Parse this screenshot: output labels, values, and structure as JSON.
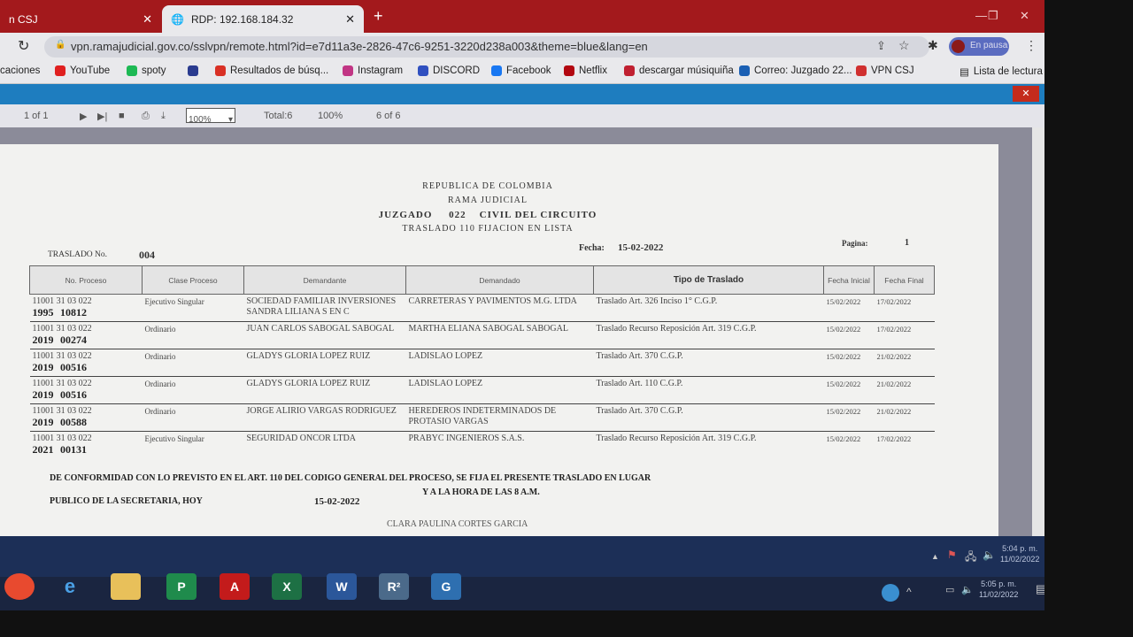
{
  "browser": {
    "tabs": [
      {
        "label": "n CSJ"
      },
      {
        "label": "RDP: 192.168.184.32"
      }
    ],
    "url": "vpn.ramajudicial.gov.co/sslvpn/remote.html?id=e7d11a3e-2826-47c6-9251-3220d238a003&theme=blue&lang=en",
    "profile_label": "En pausa",
    "bookmarks": [
      {
        "label": "caciones",
        "color": ""
      },
      {
        "label": "YouTube",
        "color": "#e02020"
      },
      {
        "label": "spoty",
        "color": "#1db954"
      },
      {
        "label": "",
        "color": "#2a3b8f"
      },
      {
        "label": "Resultados de búsq...",
        "color": "#d93025"
      },
      {
        "label": "Instagram",
        "color": "#c13584"
      },
      {
        "label": "DISCORD",
        "color": "#3050c0"
      },
      {
        "label": "Facebook",
        "color": "#1877f2"
      },
      {
        "label": "Netflix",
        "color": "#b20710"
      },
      {
        "label": "descargar músiquiña",
        "color": "#c02030"
      },
      {
        "label": "Correo: Juzgado 22...",
        "color": "#1a5fb4"
      },
      {
        "label": "VPN CSJ",
        "color": "#d03030"
      }
    ],
    "reading_list": "Lista de lectura"
  },
  "viewer_toolbar": {
    "page": "1 of 1",
    "zoom": "100%",
    "total": "Total:6",
    "percent": "100%",
    "count": "6 of 6"
  },
  "document": {
    "line1": "REPUBLICA DE COLOMBIA",
    "line2": "RAMA JUDICIAL",
    "juzgado_label": "JUZGADO",
    "juzgado_num": "022",
    "juzgado_name": "CIVIL DEL CIRCUITO",
    "line4": "TRASLADO 110 FIJACION EN LISTA",
    "traslado_label": "TRASLADO No.",
    "traslado_num": "004",
    "fecha_label": "Fecha:",
    "fecha": "15-02-2022",
    "pagina_label": "Pagina:",
    "pagina": "1",
    "columns": [
      "No. Proceso",
      "Clase Proceso",
      "Demandante",
      "Demandado",
      "Tipo de Traslado",
      "Fecha Inicial",
      "Fecha Final"
    ],
    "rows": [
      {
        "code": "11001 31 03 022",
        "year": "1995",
        "num": "10812",
        "clase": "Ejecutivo Singular",
        "demandante": "SOCIEDAD FAMILIAR INVERSIONES SANDRA LILIANA S EN C",
        "demandado": "CARRETERAS Y PAVIMENTOS M.G. LTDA",
        "tipo": "Traslado Art. 326 Inciso 1° C.G.P.",
        "inicial": "15/02/2022",
        "final": "17/02/2022"
      },
      {
        "code": "11001 31 03 022",
        "year": "2019",
        "num": "00274",
        "clase": "Ordinario",
        "demandante": "JUAN CARLOS SABOGAL SABOGAL",
        "demandado": "MARTHA ELIANA SABOGAL SABOGAL",
        "tipo": "Traslado Recurso Reposición Art. 319 C.G.P.",
        "inicial": "15/02/2022",
        "final": "17/02/2022"
      },
      {
        "code": "11001 31 03 022",
        "year": "2019",
        "num": "00516",
        "clase": "Ordinario",
        "demandante": "GLADYS GLORIA LOPEZ RUIZ",
        "demandado": "LADISLAO LOPEZ",
        "tipo": "Traslado Art. 370 C.G.P.",
        "inicial": "15/02/2022",
        "final": "21/02/2022"
      },
      {
        "code": "11001 31 03 022",
        "year": "2019",
        "num": "00516",
        "clase": "Ordinario",
        "demandante": "GLADYS GLORIA LOPEZ RUIZ",
        "demandado": "LADISLAO LOPEZ",
        "tipo": "Traslado Art. 110 C.G.P.",
        "inicial": "15/02/2022",
        "final": "21/02/2022"
      },
      {
        "code": "11001 31 03 022",
        "year": "2019",
        "num": "00588",
        "clase": "Ordinario",
        "demandante": "JORGE ALIRIO VARGAS RODRIGUEZ",
        "demandado": "HEREDEROS INDETERMINADOS DE PROTASIO VARGAS",
        "tipo": "Traslado Art. 370 C.G.P.",
        "inicial": "15/02/2022",
        "final": "21/02/2022"
      },
      {
        "code": "11001 31 03 022",
        "year": "2021",
        "num": "00131",
        "clase": "Ejecutivo Singular",
        "demandante": "SEGURIDAD ONCOR LTDA",
        "demandado": "PRABYC INGENIEROS S.A.S.",
        "tipo": "Traslado Recurso Reposición Art. 319 C.G.P.",
        "inicial": "15/02/2022",
        "final": "17/02/2022"
      }
    ],
    "footer1": "DE CONFORMIDAD CON LO PREVISTO EN EL ART. 110 DEL CODIGO GENERAL DEL PROCESO, SE FIJA EL PRESENTE TRASLADO EN LUGAR",
    "footer2": "PUBLICO DE LA SECRETARIA, HOY",
    "footer_date": "15-02-2022",
    "footer3": "Y A LA HORA DE LAS 8 A.M.",
    "signature": "CLARA PAULINA CORTES GARCIA"
  },
  "remote_clock": {
    "time": "5:04 p. m.",
    "date": "11/02/2022"
  },
  "local_clock": {
    "time": "5:05 p. m.",
    "date": "11/02/2022"
  }
}
